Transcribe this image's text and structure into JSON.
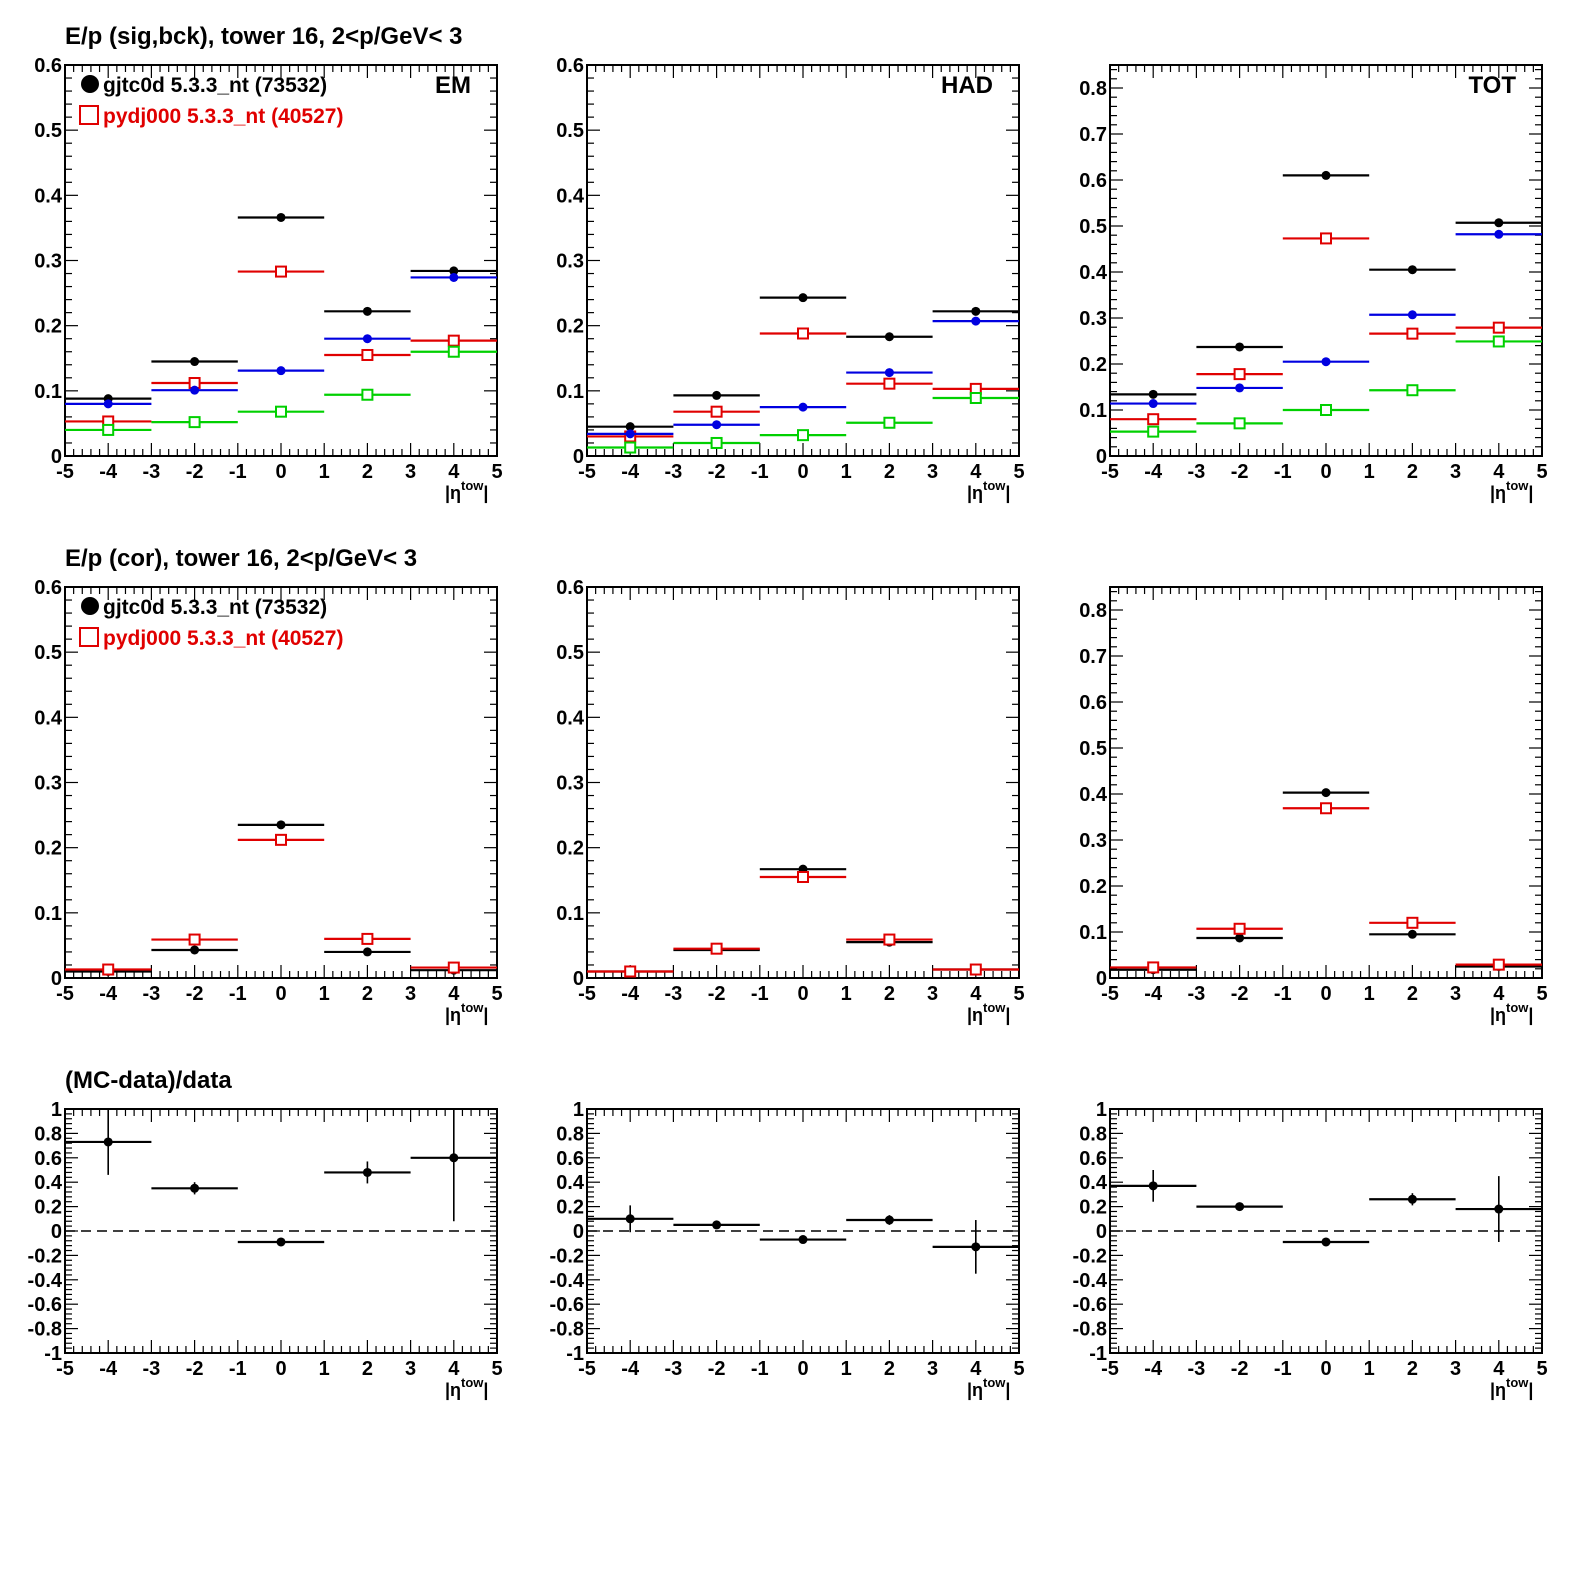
{
  "colors": {
    "data": "#000000",
    "mc": "#e00000",
    "blue": "#0000e0",
    "green": "#00d000"
  },
  "row_titles": [
    "E/p (sig,bck), tower 16,  2<p/GeV< 3",
    "E/p (cor), tower 16,  2<p/GeV< 3",
    "(MC-data)/data"
  ],
  "legend": {
    "data_label": "gjtc0d 5.3.3_nt (73532)",
    "mc_label": "pydj000 5.3.3_nt (40527)"
  },
  "chart_data": [
    {
      "type": "scatter",
      "row": 0,
      "col": 0,
      "panel_label": "EM",
      "xlabel": "|η^tow|",
      "xlim": [
        -5,
        5
      ],
      "ylim": [
        0,
        0.6
      ],
      "xticks": [
        -5,
        -4,
        -3,
        -2,
        -1,
        0,
        1,
        2,
        3,
        4,
        5
      ],
      "yticks": [
        0,
        0.1,
        0.2,
        0.3,
        0.4,
        0.5,
        0.6
      ],
      "ytick_labels": [
        "0",
        "0.1",
        "0.2",
        "0.3",
        "0.4",
        "0.5",
        "0.6"
      ],
      "series": [
        {
          "role": "data",
          "marker": "dot",
          "x": [
            -4,
            -2,
            0,
            2,
            4
          ],
          "xerr": 1,
          "y": [
            0.088,
            0.145,
            0.366,
            0.222,
            0.284
          ]
        },
        {
          "role": "mc",
          "marker": "square",
          "x": [
            -4,
            -2,
            0,
            2,
            4
          ],
          "xerr": 1,
          "y": [
            0.053,
            0.112,
            0.283,
            0.155,
            0.177
          ]
        },
        {
          "role": "blue",
          "marker": "dot",
          "x": [
            -4,
            -2,
            0,
            2,
            4
          ],
          "xerr": 1,
          "y": [
            0.08,
            0.101,
            0.131,
            0.18,
            0.274
          ]
        },
        {
          "role": "green",
          "marker": "square",
          "x": [
            -4,
            -2,
            0,
            2,
            4
          ],
          "xerr": 1,
          "y": [
            0.04,
            0.052,
            0.068,
            0.094,
            0.16
          ]
        }
      ]
    },
    {
      "type": "scatter",
      "row": 0,
      "col": 1,
      "panel_label": "HAD",
      "xlabel": "|η^tow|",
      "xlim": [
        -5,
        5
      ],
      "ylim": [
        0,
        0.6
      ],
      "xticks": [
        -5,
        -4,
        -3,
        -2,
        -1,
        0,
        1,
        2,
        3,
        4,
        5
      ],
      "yticks": [
        0,
        0.1,
        0.2,
        0.3,
        0.4,
        0.5,
        0.6
      ],
      "ytick_labels": [
        "0",
        "0.1",
        "0.2",
        "0.3",
        "0.4",
        "0.5",
        "0.6"
      ],
      "series": [
        {
          "role": "data",
          "marker": "dot",
          "x": [
            -4,
            -2,
            0,
            2,
            4
          ],
          "xerr": 1,
          "y": [
            0.045,
            0.093,
            0.243,
            0.183,
            0.222
          ]
        },
        {
          "role": "mc",
          "marker": "square",
          "x": [
            -4,
            -2,
            0,
            2,
            4
          ],
          "xerr": 1,
          "y": [
            0.03,
            0.068,
            0.188,
            0.111,
            0.103
          ]
        },
        {
          "role": "blue",
          "marker": "dot",
          "x": [
            -4,
            -2,
            0,
            2,
            4
          ],
          "xerr": 1,
          "y": [
            0.034,
            0.048,
            0.075,
            0.128,
            0.207
          ]
        },
        {
          "role": "green",
          "marker": "square",
          "x": [
            -4,
            -2,
            0,
            2,
            4
          ],
          "xerr": 1,
          "y": [
            0.013,
            0.02,
            0.032,
            0.051,
            0.089
          ]
        }
      ]
    },
    {
      "type": "scatter",
      "row": 0,
      "col": 2,
      "panel_label": "TOT",
      "xlabel": "|η^tow|",
      "xlim": [
        -5,
        5
      ],
      "ylim": [
        0,
        0.85
      ],
      "xticks": [
        -5,
        -4,
        -3,
        -2,
        -1,
        0,
        1,
        2,
        3,
        4,
        5
      ],
      "yticks": [
        0,
        0.1,
        0.2,
        0.3,
        0.4,
        0.5,
        0.6,
        0.7,
        0.8
      ],
      "ytick_labels": [
        "0",
        "0.1",
        "0.2",
        "0.3",
        "0.4",
        "0.5",
        "0.6",
        "0.7",
        "0.8"
      ],
      "series": [
        {
          "role": "data",
          "marker": "dot",
          "x": [
            -4,
            -2,
            0,
            2,
            4
          ],
          "xerr": 1,
          "y": [
            0.134,
            0.237,
            0.61,
            0.405,
            0.507
          ]
        },
        {
          "role": "mc",
          "marker": "square",
          "x": [
            -4,
            -2,
            0,
            2,
            4
          ],
          "xerr": 1,
          "y": [
            0.08,
            0.178,
            0.473,
            0.266,
            0.279
          ]
        },
        {
          "role": "blue",
          "marker": "dot",
          "x": [
            -4,
            -2,
            0,
            2,
            4
          ],
          "xerr": 1,
          "y": [
            0.114,
            0.148,
            0.205,
            0.307,
            0.482
          ]
        },
        {
          "role": "green",
          "marker": "square",
          "x": [
            -4,
            -2,
            0,
            2,
            4
          ],
          "xerr": 1,
          "y": [
            0.053,
            0.071,
            0.1,
            0.143,
            0.249
          ]
        }
      ]
    },
    {
      "type": "scatter",
      "row": 1,
      "col": 0,
      "xlabel": "|η^tow|",
      "xlim": [
        -5,
        5
      ],
      "ylim": [
        0,
        0.6
      ],
      "xticks": [
        -5,
        -4,
        -3,
        -2,
        -1,
        0,
        1,
        2,
        3,
        4,
        5
      ],
      "yticks": [
        0,
        0.1,
        0.2,
        0.3,
        0.4,
        0.5,
        0.6
      ],
      "ytick_labels": [
        "0",
        "0.1",
        "0.2",
        "0.3",
        "0.4",
        "0.5",
        "0.6"
      ],
      "series": [
        {
          "role": "data",
          "marker": "dot",
          "x": [
            -4,
            -2,
            0,
            2,
            4
          ],
          "xerr": 1,
          "y": [
            0.01,
            0.043,
            0.235,
            0.04,
            0.012
          ]
        },
        {
          "role": "mc",
          "marker": "square",
          "x": [
            -4,
            -2,
            0,
            2,
            4
          ],
          "xerr": 1,
          "y": [
            0.013,
            0.059,
            0.212,
            0.06,
            0.016
          ]
        }
      ]
    },
    {
      "type": "scatter",
      "row": 1,
      "col": 1,
      "xlabel": "|η^tow|",
      "xlim": [
        -5,
        5
      ],
      "ylim": [
        0,
        0.6
      ],
      "xticks": [
        -5,
        -4,
        -3,
        -2,
        -1,
        0,
        1,
        2,
        3,
        4,
        5
      ],
      "yticks": [
        0,
        0.1,
        0.2,
        0.3,
        0.4,
        0.5,
        0.6
      ],
      "ytick_labels": [
        "0",
        "0.1",
        "0.2",
        "0.3",
        "0.4",
        "0.5",
        "0.6"
      ],
      "series": [
        {
          "role": "data",
          "marker": "dot",
          "x": [
            -4,
            -2,
            0,
            2,
            4
          ],
          "xerr": 1,
          "y": [
            0.01,
            0.043,
            0.167,
            0.055,
            0.013
          ]
        },
        {
          "role": "mc",
          "marker": "square",
          "x": [
            -4,
            -2,
            0,
            2,
            4
          ],
          "xerr": 1,
          "y": [
            0.01,
            0.045,
            0.155,
            0.059,
            0.013
          ]
        }
      ]
    },
    {
      "type": "scatter",
      "row": 1,
      "col": 2,
      "xlabel": "|η^tow|",
      "xlim": [
        -5,
        5
      ],
      "ylim": [
        0,
        0.85
      ],
      "xticks": [
        -5,
        -4,
        -3,
        -2,
        -1,
        0,
        1,
        2,
        3,
        4,
        5
      ],
      "yticks": [
        0,
        0.1,
        0.2,
        0.3,
        0.4,
        0.5,
        0.6,
        0.7,
        0.8
      ],
      "ytick_labels": [
        "0",
        "0.1",
        "0.2",
        "0.3",
        "0.4",
        "0.5",
        "0.6",
        "0.7",
        "0.8"
      ],
      "series": [
        {
          "role": "data",
          "marker": "dot",
          "x": [
            -4,
            -2,
            0,
            2,
            4
          ],
          "xerr": 1,
          "y": [
            0.018,
            0.087,
            0.403,
            0.095,
            0.025
          ]
        },
        {
          "role": "mc",
          "marker": "square",
          "x": [
            -4,
            -2,
            0,
            2,
            4
          ],
          "xerr": 1,
          "y": [
            0.023,
            0.107,
            0.369,
            0.12,
            0.029
          ]
        }
      ]
    },
    {
      "type": "scatter",
      "row": 2,
      "col": 0,
      "xlabel": "|η^tow|",
      "xlim": [
        -5,
        5
      ],
      "ylim": [
        -1,
        1
      ],
      "zero_line": true,
      "xticks": [
        -5,
        -4,
        -3,
        -2,
        -1,
        0,
        1,
        2,
        3,
        4,
        5
      ],
      "yticks": [
        -1,
        -0.8,
        -0.6,
        -0.4,
        -0.2,
        0,
        0.2,
        0.4,
        0.6,
        0.8,
        1
      ],
      "ytick_labels": [
        "-1",
        "-0.8",
        "-0.6",
        "-0.4",
        "-0.2",
        "0",
        "0.2",
        "0.4",
        "0.6",
        "0.8",
        "1"
      ],
      "series": [
        {
          "role": "data",
          "marker": "dot",
          "x": [
            -4,
            -2,
            0,
            2,
            4
          ],
          "xerr": 1,
          "y": [
            0.73,
            0.35,
            -0.09,
            0.48,
            0.6
          ],
          "yerr": [
            0.27,
            0.05,
            0.02,
            0.09,
            0.52
          ]
        }
      ]
    },
    {
      "type": "scatter",
      "row": 2,
      "col": 1,
      "xlabel": "|η^tow|",
      "xlim": [
        -5,
        5
      ],
      "ylim": [
        -1,
        1
      ],
      "zero_line": true,
      "xticks": [
        -5,
        -4,
        -3,
        -2,
        -1,
        0,
        1,
        2,
        3,
        4,
        5
      ],
      "yticks": [
        -1,
        -0.8,
        -0.6,
        -0.4,
        -0.2,
        0,
        0.2,
        0.4,
        0.6,
        0.8,
        1
      ],
      "ytick_labels": [
        "-1",
        "-0.8",
        "-0.6",
        "-0.4",
        "-0.2",
        "0",
        "0.2",
        "0.4",
        "0.6",
        "0.8",
        "1"
      ],
      "series": [
        {
          "role": "data",
          "marker": "dot",
          "x": [
            -4,
            -2,
            0,
            2,
            4
          ],
          "xerr": 1,
          "y": [
            0.1,
            0.05,
            -0.07,
            0.09,
            -0.13
          ],
          "yerr": [
            0.11,
            0.02,
            0.02,
            0.04,
            0.22
          ]
        }
      ]
    },
    {
      "type": "scatter",
      "row": 2,
      "col": 2,
      "xlabel": "|η^tow|",
      "xlim": [
        -5,
        5
      ],
      "ylim": [
        -1,
        1
      ],
      "zero_line": true,
      "xticks": [
        -5,
        -4,
        -3,
        -2,
        -1,
        0,
        1,
        2,
        3,
        4,
        5
      ],
      "yticks": [
        -1,
        -0.8,
        -0.6,
        -0.4,
        -0.2,
        0,
        0.2,
        0.4,
        0.6,
        0.8,
        1
      ],
      "ytick_labels": [
        "-1",
        "-0.8",
        "-0.6",
        "-0.4",
        "-0.2",
        "0",
        "0.2",
        "0.4",
        "0.6",
        "0.8",
        "1"
      ],
      "series": [
        {
          "role": "data",
          "marker": "dot",
          "x": [
            -4,
            -2,
            0,
            2,
            4
          ],
          "xerr": 1,
          "y": [
            0.37,
            0.2,
            -0.09,
            0.26,
            0.18
          ],
          "yerr": [
            0.13,
            0.02,
            0.02,
            0.05,
            0.27
          ]
        }
      ]
    }
  ]
}
